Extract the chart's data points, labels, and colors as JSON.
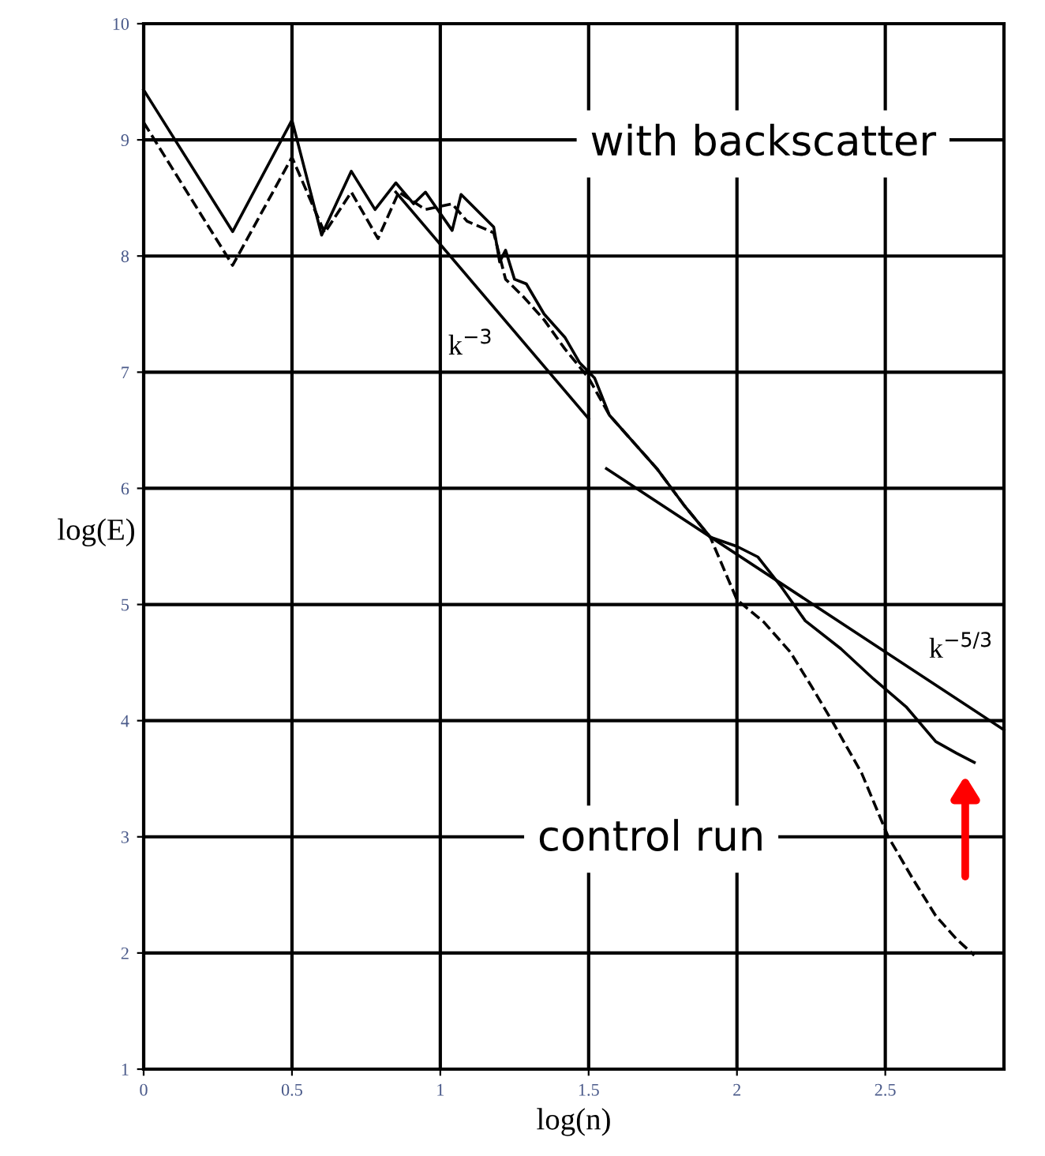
{
  "chart_data": {
    "type": "line",
    "xlabel": "log(n)",
    "ylabel": "log(E)",
    "xlim": [
      0,
      2.9
    ],
    "ylim": [
      1,
      10
    ],
    "xticks": [
      0,
      0.5,
      1,
      1.5,
      2,
      2.5
    ],
    "yticks": [
      1,
      2,
      3,
      4,
      5,
      6,
      7,
      8,
      9,
      10
    ],
    "grid": true,
    "legend": false,
    "marker": "none",
    "series": [
      {
        "color": "#000000",
        "line_style": "solid",
        "x": [
          0,
          0.3,
          0.5,
          0.6,
          0.7,
          0.78,
          0.85,
          0.91,
          0.95,
          1.04,
          1.07,
          1.18,
          1.2,
          1.22,
          1.25,
          1.29,
          1.35,
          1.42,
          1.47,
          1.52,
          1.57,
          1.65,
          1.73,
          1.82,
          1.91,
          2.0,
          2.07,
          2.15,
          2.23,
          2.35,
          2.46,
          2.57,
          2.67,
          2.74,
          2.8
        ],
        "values": [
          9.43,
          8.21,
          9.17,
          8.18,
          8.73,
          8.4,
          8.63,
          8.45,
          8.55,
          8.22,
          8.53,
          8.25,
          7.95,
          8.05,
          7.8,
          7.76,
          7.5,
          7.3,
          7.08,
          6.95,
          6.63,
          6.4,
          6.17,
          5.86,
          5.58,
          5.5,
          5.41,
          5.15,
          4.86,
          4.62,
          4.36,
          4.12,
          3.82,
          3.72,
          3.64
        ]
      },
      {
        "color": "#000000",
        "line_style": "dashed",
        "x": [
          0,
          0.3,
          0.5,
          0.61,
          0.7,
          0.79,
          0.86,
          0.95,
          1.04,
          1.09,
          1.18,
          1.22,
          1.28,
          1.35,
          1.42,
          1.5,
          1.57,
          1.65,
          1.73,
          1.82,
          1.91,
          2.0,
          2.09,
          2.18,
          2.25,
          2.32,
          2.42,
          2.51,
          2.59,
          2.67,
          2.74,
          2.8
        ],
        "values": [
          9.15,
          7.92,
          8.85,
          8.2,
          8.55,
          8.15,
          8.55,
          8.4,
          8.45,
          8.3,
          8.2,
          7.8,
          7.65,
          7.45,
          7.2,
          6.95,
          6.63,
          6.4,
          6.17,
          5.86,
          5.58,
          5.04,
          4.85,
          4.59,
          4.3,
          4.0,
          3.55,
          3.0,
          2.65,
          2.32,
          2.12,
          1.98
        ]
      },
      {
        "color": "#000000",
        "line_style": "solid",
        "x": [
          0.85,
          1.5
        ],
        "values": [
          8.55,
          6.6
        ]
      },
      {
        "color": "#000000",
        "line_style": "solid",
        "x": [
          1.56,
          2.9
        ],
        "values": [
          6.17,
          3.92
        ]
      }
    ],
    "annotations": [
      "with backscatter",
      "control run",
      "k$^{−3}$",
      "k$^{−5/3}$"
    ]
  }
}
